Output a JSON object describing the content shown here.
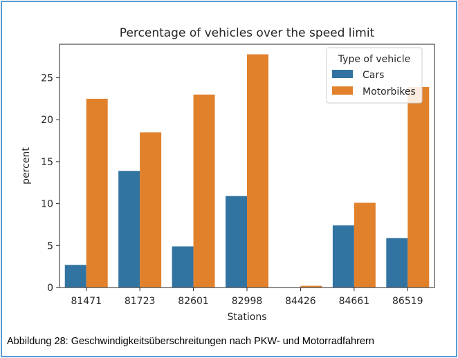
{
  "caption": "Abbildung 28: Geschwindigkeitsüberschreitungen nach PKW- und Motorradfahrern",
  "chart_data": {
    "type": "bar",
    "title": "Percentage of vehicles over the speed limit",
    "xlabel": "Stations",
    "ylabel": "percent",
    "categories": [
      "81471",
      "81723",
      "82601",
      "82998",
      "84426",
      "84661",
      "86519"
    ],
    "series": [
      {
        "name": "Cars",
        "color": "#3274a1",
        "values": [
          2.7,
          13.9,
          4.9,
          10.9,
          0.0,
          7.4,
          5.9
        ]
      },
      {
        "name": "Motorbikes",
        "color": "#e1812c",
        "values": [
          22.5,
          18.5,
          23.0,
          27.8,
          0.2,
          10.1,
          23.9
        ]
      }
    ],
    "ylim": [
      0,
      29
    ],
    "yticks": [
      0,
      5,
      10,
      15,
      20,
      25
    ],
    "legend": {
      "title": "Type of vehicle",
      "position": "top-right"
    },
    "grid": false
  }
}
